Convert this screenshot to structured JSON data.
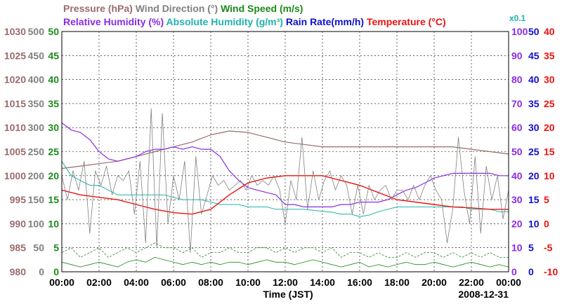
{
  "chart_data": {
    "type": "line",
    "date": "2008-12-31",
    "xlabel": "Time (JST)",
    "x_ticks": [
      "00:00",
      "02:00",
      "04:00",
      "06:00",
      "08:00",
      "10:00",
      "12:00",
      "14:00",
      "16:00",
      "18:00",
      "20:00",
      "22:00",
      "00:00"
    ],
    "grid": true,
    "titles_row1": [
      {
        "text": "Pressure (hPa)",
        "color": "#9b6b6b"
      },
      {
        "text": "Wind Direction (°)",
        "color": "#808080"
      },
      {
        "text": "Wind Speed (m/s)",
        "color": "#1a8a1a"
      }
    ],
    "titles_row2": [
      {
        "text": "Relative Humidity (%)",
        "color": "#8a2be2"
      },
      {
        "text": "Absolute Humidity (g/m³)",
        "color": "#20b2aa"
      },
      {
        "text": "Rain Rate(mm/h)",
        "color": "#1010cc"
      },
      {
        "text": "Temperature (°C)",
        "color": "#ee1111"
      }
    ],
    "scale_note": "x0.1",
    "axes": {
      "pressure": {
        "color": "#9b6b6b",
        "range": [
          980,
          1030
        ],
        "ticks": [
          "1030",
          "1025",
          "1020",
          "1015",
          "1010",
          "1005",
          "1000",
          "995",
          "990",
          "985",
          "980"
        ]
      },
      "wind_dir": {
        "color": "#808080",
        "range": [
          0,
          500
        ],
        "ticks": [
          "500",
          "450",
          "400",
          "350",
          "300",
          "250",
          "200",
          "150",
          "100",
          "50",
          "0"
        ]
      },
      "wind_speed": {
        "color": "#1a8a1a",
        "range": [
          0,
          50
        ],
        "ticks": [
          "50",
          "45",
          "40",
          "35",
          "30",
          "25",
          "20",
          "15",
          "10",
          "5",
          "0"
        ]
      },
      "rel_hum": {
        "color": "#8a2be2",
        "range": [
          0,
          100
        ],
        "ticks": [
          "100",
          "90",
          "80",
          "70",
          "60",
          "50",
          "40",
          "30",
          "20",
          "10",
          "0"
        ]
      },
      "rain_rate": {
        "color": "#1010cc",
        "range": [
          0,
          50
        ],
        "ticks": [
          "50",
          "45",
          "40",
          "35",
          "30",
          "25",
          "20",
          "15",
          "10",
          "5",
          "0"
        ]
      },
      "temp": {
        "color": "#ee1111",
        "range": [
          -10,
          40
        ],
        "ticks": [
          "40",
          "35",
          "30",
          "25",
          "20",
          "15",
          "10",
          "5",
          "0",
          "-5",
          "-10"
        ]
      }
    },
    "series": [
      {
        "name": "Pressure",
        "axis": "pressure",
        "color": "#9b6b6b",
        "dash": "",
        "width": 1.2,
        "x": [
          0,
          1,
          2,
          3,
          4,
          5,
          6,
          7,
          8,
          9,
          10,
          11,
          12,
          13,
          14,
          15,
          16,
          17,
          18,
          19,
          20,
          21,
          22,
          23,
          24
        ],
        "y": [
          1001.5,
          1002,
          1002.5,
          1003,
          1004,
          1005,
          1006,
          1007,
          1008.5,
          1009.3,
          1009,
          1008,
          1007,
          1006.5,
          1006,
          1006,
          1006,
          1006,
          1006,
          1006,
          1006,
          1006,
          1005.5,
          1005,
          1004.5
        ]
      },
      {
        "name": "Relative Humidity",
        "axis": "rel_hum",
        "color": "#8a2be2",
        "dash": "",
        "width": 1.2,
        "x": [
          0,
          0.5,
          1,
          1.5,
          2,
          2.5,
          3,
          3.5,
          4,
          4.5,
          5,
          5.5,
          6,
          6.5,
          7,
          7.5,
          8,
          8.5,
          9,
          9.5,
          10,
          10.5,
          11,
          11.5,
          12,
          12.5,
          13,
          13.5,
          14,
          14.5,
          15,
          15.5,
          16,
          16.5,
          17,
          17.5,
          18,
          18.5,
          19,
          19.5,
          20,
          20.5,
          21,
          21.5,
          22,
          22.5,
          23,
          23.5,
          24
        ],
        "y": [
          62,
          59,
          58,
          55,
          50,
          47,
          46,
          47,
          48,
          50,
          51,
          51,
          52,
          51,
          52,
          51,
          51,
          48,
          42,
          38,
          35,
          34,
          33,
          32,
          28,
          28,
          27,
          27,
          27,
          27,
          28,
          28,
          29,
          29,
          29,
          30,
          32,
          34,
          35,
          37,
          39,
          40,
          41,
          41,
          41,
          41,
          41,
          40,
          40
        ]
      },
      {
        "name": "Absolute Humidity",
        "axis": "wind_speed",
        "color": "#20b2aa",
        "dash": "",
        "width": 1.0,
        "x": [
          0,
          0.5,
          1,
          1.5,
          2,
          2.5,
          3,
          3.5,
          4,
          4.5,
          5,
          5.5,
          6,
          6.5,
          7,
          7.5,
          8,
          8.5,
          9,
          9.5,
          10,
          10.5,
          11,
          11.5,
          12,
          12.5,
          13,
          13.5,
          14,
          14.5,
          15,
          15.5,
          16,
          16.5,
          17,
          17.5,
          18,
          18.5,
          19,
          19.5,
          20,
          20.5,
          21,
          21.5,
          22,
          22.5,
          23,
          23.5,
          24
        ],
        "y": [
          23,
          20,
          19,
          18,
          18,
          17,
          16,
          16,
          16,
          16,
          16,
          16,
          15.5,
          15,
          15,
          15,
          14.5,
          14,
          14,
          14,
          13.5,
          13.5,
          13.5,
          13,
          13,
          13,
          13,
          12.8,
          12.6,
          12.4,
          12,
          12,
          11.5,
          11.8,
          12.5,
          13,
          13.5,
          13.5,
          13.5,
          13.5,
          13.5,
          13.5,
          13.5,
          13.5,
          13,
          13,
          13,
          12.5,
          12.5
        ]
      },
      {
        "name": "Temperature",
        "axis": "temp",
        "color": "#ee1111",
        "dash": "",
        "width": 1.4,
        "x": [
          0,
          1,
          2,
          3,
          4,
          5,
          6,
          7,
          8,
          9,
          10,
          11,
          12,
          13,
          14,
          15,
          16,
          17,
          18,
          19,
          20,
          21,
          22,
          23,
          24
        ],
        "y": [
          7,
          6,
          5.5,
          5,
          4,
          3,
          2.3,
          2,
          3,
          6,
          8.5,
          9.5,
          10,
          10,
          10,
          9,
          8,
          6.5,
          5,
          4.5,
          4,
          3.5,
          3.3,
          3,
          3
        ]
      },
      {
        "name": "Wind Direction",
        "axis": "wind_dir",
        "color": "#808080",
        "dash": "",
        "width": 0.8,
        "x": [
          0,
          0.3,
          0.6,
          0.9,
          1.2,
          1.5,
          1.8,
          2.1,
          2.4,
          2.7,
          3.0,
          3.3,
          3.6,
          3.9,
          4.2,
          4.5,
          4.8,
          5.1,
          5.4,
          5.7,
          6.0,
          6.3,
          6.6,
          6.9,
          7.2,
          7.5,
          7.8,
          8.1,
          8.4,
          8.7,
          9.0,
          9.3,
          9.6,
          9.9,
          10.2,
          10.5,
          10.8,
          11.1,
          11.4,
          11.7,
          12.0,
          12.3,
          12.6,
          12.9,
          13.2,
          13.5,
          13.8,
          14.1,
          14.4,
          14.7,
          15.0,
          15.3,
          15.6,
          15.9,
          16.2,
          16.5,
          16.8,
          17.1,
          17.4,
          17.7,
          18.0,
          18.3,
          18.6,
          18.9,
          19.2,
          19.5,
          19.8,
          20.1,
          20.4,
          20.7,
          21.0,
          21.3,
          21.6,
          21.9,
          22.2,
          22.5,
          22.8,
          23.1,
          23.4,
          23.7,
          24.0
        ],
        "y": [
          200,
          150,
          210,
          170,
          230,
          80,
          210,
          180,
          220,
          160,
          200,
          190,
          210,
          120,
          230,
          60,
          340,
          50,
          330,
          100,
          200,
          150,
          230,
          40,
          240,
          120,
          160,
          200,
          180,
          190,
          170,
          180,
          190,
          170,
          200,
          180,
          190,
          180,
          200,
          170,
          100,
          190,
          150,
          280,
          130,
          210,
          150,
          190,
          210,
          170,
          200,
          180,
          120,
          180,
          120,
          180,
          150,
          170,
          180,
          150,
          170,
          170,
          150,
          180,
          150,
          180,
          200,
          170,
          150,
          60,
          130,
          280,
          170,
          100,
          240,
          80,
          220,
          150,
          200,
          110,
          170
        ]
      },
      {
        "name": "Wind Speed",
        "axis": "wind_speed",
        "color": "#1a8a1a",
        "dash": "",
        "width": 0.8,
        "x": [
          0,
          0.5,
          1,
          1.5,
          2,
          2.5,
          3,
          3.5,
          4,
          4.5,
          5,
          5.5,
          6,
          6.5,
          7,
          7.5,
          8,
          8.5,
          9,
          9.5,
          10,
          10.5,
          11,
          11.5,
          12,
          12.5,
          13,
          13.5,
          14,
          14.5,
          15,
          15.5,
          16,
          16.5,
          17,
          17.5,
          18,
          18.5,
          19,
          19.5,
          20,
          20.5,
          21,
          21.5,
          22,
          22.5,
          23,
          23.5,
          24
        ],
        "y": [
          2,
          1.5,
          1,
          1.5,
          2,
          1.5,
          1,
          2,
          2.5,
          2,
          3,
          2.5,
          2,
          1.5,
          2,
          1.5,
          2,
          1.5,
          2,
          2,
          1.5,
          2,
          2.5,
          2,
          2,
          1.5,
          2,
          2.5,
          2,
          1.5,
          1,
          1.5,
          2,
          1,
          1.5,
          1,
          1.5,
          2,
          1.5,
          1.5,
          2,
          1.5,
          1,
          1.5,
          2,
          1.5,
          1,
          1.5,
          1
        ]
      },
      {
        "name": "Wind Speed (gust)",
        "axis": "wind_speed",
        "color": "#1a8a1a",
        "dash": "3,2",
        "width": 0.8,
        "x": [
          0,
          0.5,
          1,
          1.5,
          2,
          2.5,
          3,
          3.5,
          4,
          4.5,
          5,
          5.5,
          6,
          6.5,
          7,
          7.5,
          8,
          8.5,
          9,
          9.5,
          10,
          10.5,
          11,
          11.5,
          12,
          12.5,
          13,
          13.5,
          14,
          14.5,
          15,
          15.5,
          16,
          16.5,
          17,
          17.5,
          18,
          18.5,
          19,
          19.5,
          20,
          20.5,
          21,
          21.5,
          22,
          22.5,
          23,
          23.5,
          24
        ],
        "y": [
          4,
          5,
          3,
          4,
          5,
          3,
          4,
          5,
          4,
          5,
          6,
          5,
          5,
          4,
          5,
          3,
          4,
          4,
          5,
          4,
          4,
          5,
          5,
          4,
          5,
          4,
          5,
          5,
          4,
          5,
          3,
          4,
          4,
          3,
          4,
          3,
          3,
          4,
          3,
          4,
          4,
          3,
          4,
          3,
          4,
          3,
          4,
          3,
          3
        ]
      }
    ]
  }
}
